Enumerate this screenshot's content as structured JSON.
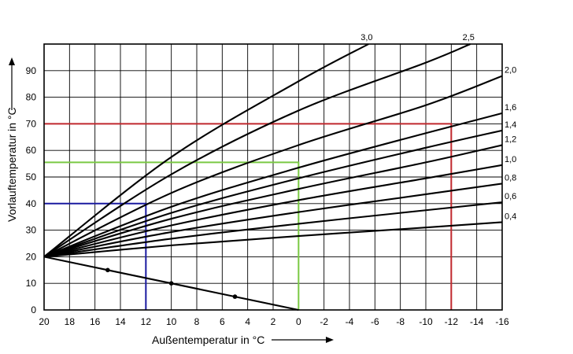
{
  "chart_data": {
    "type": "line",
    "title": "",
    "xlabel": "Außentemperatur in °C",
    "ylabel": "Vorlauftemperatur in °C",
    "xlim": [
      20,
      -16
    ],
    "ylim": [
      0,
      100
    ],
    "x_ticks": [
      20,
      18,
      16,
      14,
      12,
      10,
      8,
      6,
      4,
      2,
      0,
      -2,
      -4,
      -6,
      -8,
      -10,
      -12,
      -14,
      -16
    ],
    "y_ticks": [
      0,
      10,
      20,
      30,
      40,
      50,
      60,
      70,
      80,
      90
    ],
    "grid": true,
    "series": [
      {
        "name": "0,4",
        "x": [
          20,
          10,
          0,
          -10,
          -16
        ],
        "y": [
          20,
          24.3,
          27.8,
          31,
          33
        ]
      },
      {
        "name": "0,6",
        "x": [
          20,
          10,
          0,
          -10,
          -16
        ],
        "y": [
          20,
          26.8,
          32.4,
          37.5,
          40.5
        ]
      },
      {
        "name": "0,8",
        "x": [
          20,
          10,
          0,
          -10,
          -16
        ],
        "y": [
          20,
          29.3,
          36.8,
          43.5,
          47.5
        ]
      },
      {
        "name": "1,0",
        "x": [
          20,
          10,
          0,
          -10,
          -16
        ],
        "y": [
          20,
          31.8,
          41.3,
          49.5,
          54.5
        ]
      },
      {
        "name": "1,2",
        "x": [
          20,
          10,
          0,
          -10,
          -16
        ],
        "y": [
          20,
          34.3,
          45.5,
          55.5,
          62
        ]
      },
      {
        "name": "1,4",
        "x": [
          20,
          10,
          0,
          -10,
          -16
        ],
        "y": [
          20,
          36.5,
          49.5,
          61,
          67.5
        ]
      },
      {
        "name": "1,6",
        "x": [
          20,
          10,
          0,
          -10,
          -16
        ],
        "y": [
          20,
          38.8,
          53.5,
          66.5,
          74
        ]
      },
      {
        "name": "2,0",
        "x": [
          20,
          10,
          0,
          -10,
          -16
        ],
        "y": [
          20,
          44,
          62,
          77,
          88
        ]
      },
      {
        "name": "2,5",
        "x": [
          20,
          10,
          0,
          -10,
          -13.5
        ],
        "y": [
          20,
          51,
          75,
          93,
          100
        ]
      },
      {
        "name": "3,0",
        "x": [
          20,
          10,
          0,
          -5.5
        ],
        "y": [
          20,
          57.5,
          86,
          100
        ]
      }
    ],
    "reference_line": {
      "x": [
        20,
        15,
        10,
        5,
        0
      ],
      "y": [
        20,
        15,
        10,
        5,
        0
      ],
      "dot_x": [
        15,
        10,
        5
      ]
    },
    "guides": [
      {
        "color": "#1a1aa0",
        "x": 12,
        "y": 40
      },
      {
        "color": "#7ac943",
        "x": 0,
        "y": 55.5
      },
      {
        "color": "#c0282d",
        "x": -12,
        "y": 70
      }
    ]
  }
}
